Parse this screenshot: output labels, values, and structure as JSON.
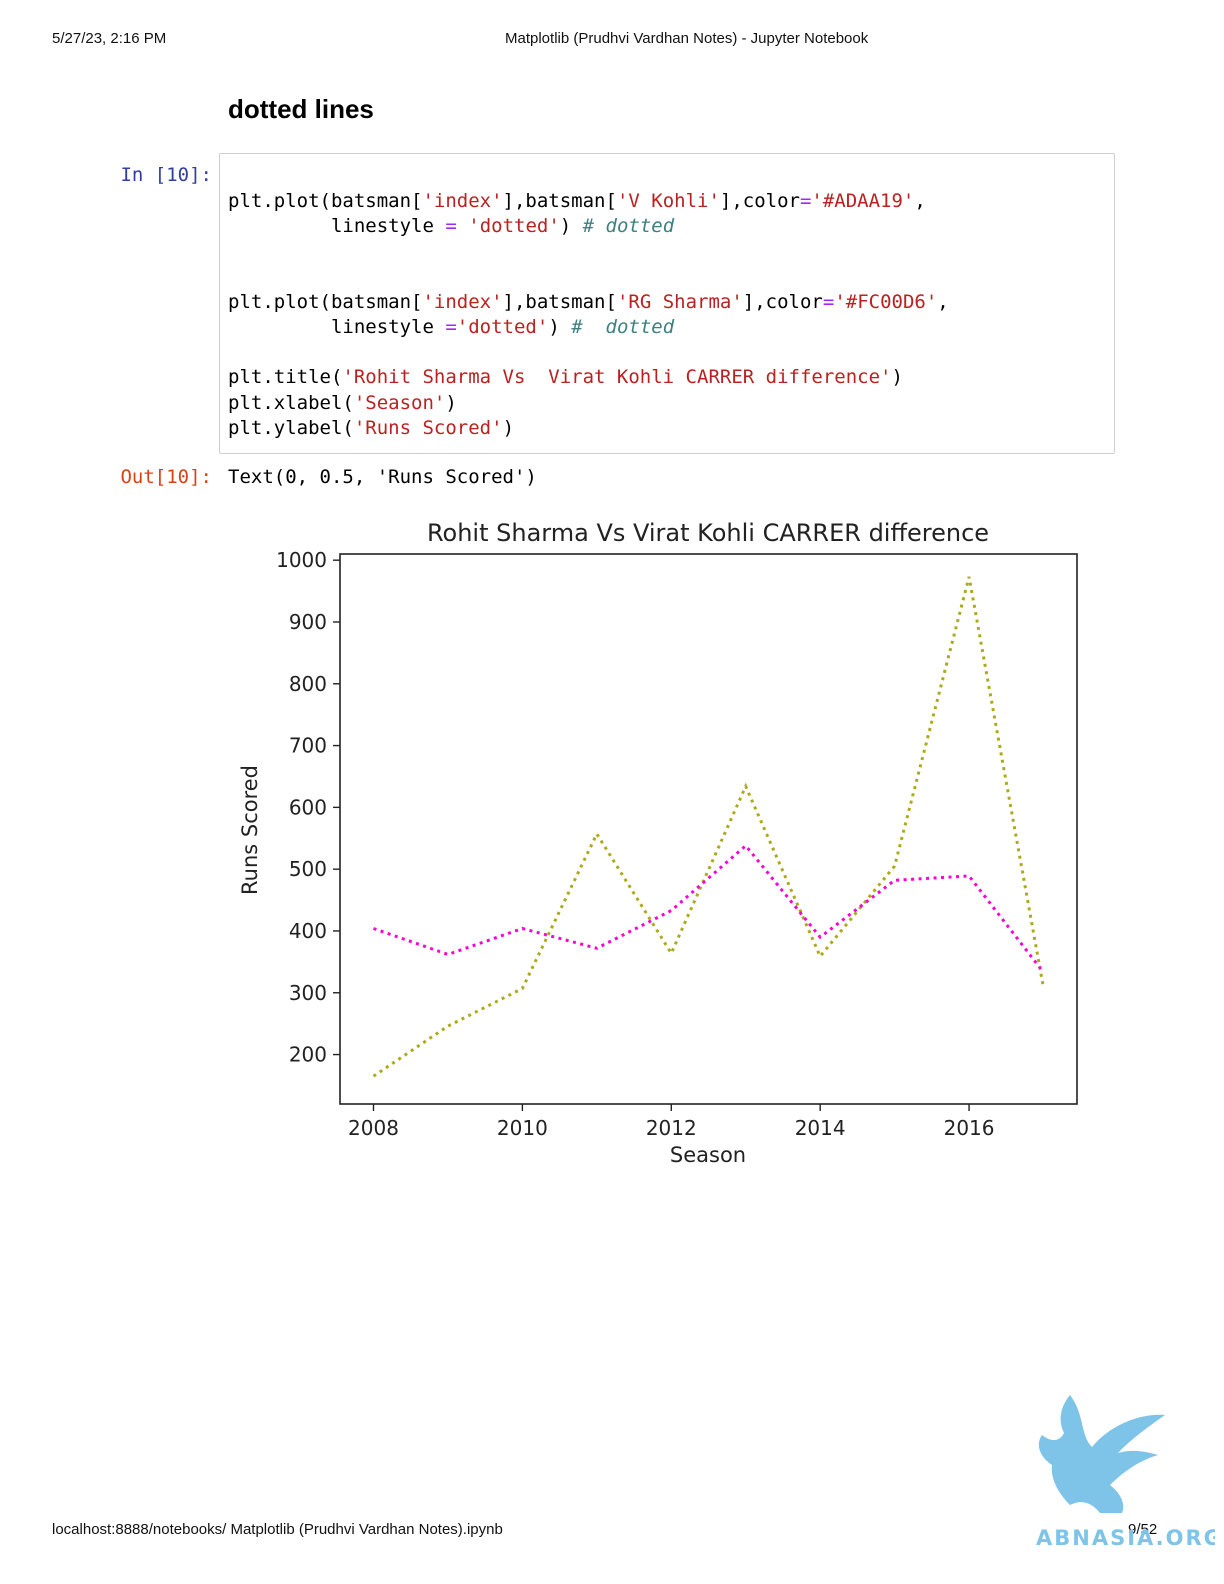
{
  "page": {
    "date": "5/27/23, 2:16 PM",
    "title": "Matplotlib (Prudhvi Vardhan Notes) - Jupyter Notebook",
    "url": "localhost:8888/notebooks/ Matplotlib (Prudhvi Vardhan Notes).ipynb",
    "page_number": "9/52"
  },
  "markdown": {
    "heading": "dotted lines"
  },
  "cell": {
    "in_prompt": "In [10]:",
    "out_prompt": "Out[10]:",
    "code_lines": [
      [
        {
          "t": "plt.plot(batsman["
        },
        {
          "t": "'index'",
          "k": "s"
        },
        {
          "t": "],batsman["
        },
        {
          "t": "'V Kohli'",
          "k": "s"
        },
        {
          "t": "],color"
        },
        {
          "t": "=",
          "k": "o"
        },
        {
          "t": "'#ADAA19'",
          "k": "s"
        },
        {
          "t": ","
        }
      ],
      [
        {
          "t": "         linestyle "
        },
        {
          "t": "=",
          "k": "o"
        },
        {
          "t": " "
        },
        {
          "t": "'dotted'",
          "k": "s"
        },
        {
          "t": ") "
        },
        {
          "t": "# dotted",
          "k": "c"
        }
      ],
      [],
      [],
      [
        {
          "t": "plt.plot(batsman["
        },
        {
          "t": "'index'",
          "k": "s"
        },
        {
          "t": "],batsman["
        },
        {
          "t": "'RG Sharma'",
          "k": "s"
        },
        {
          "t": "],color"
        },
        {
          "t": "=",
          "k": "o"
        },
        {
          "t": "'#FC00D6'",
          "k": "s"
        },
        {
          "t": ","
        }
      ],
      [
        {
          "t": "         linestyle "
        },
        {
          "t": "=",
          "k": "o"
        },
        {
          "t": "'dotted'",
          "k": "s"
        },
        {
          "t": ") "
        },
        {
          "t": "#  dotted",
          "k": "c"
        }
      ],
      [],
      [
        {
          "t": "plt.title("
        },
        {
          "t": "'Rohit Sharma Vs  Virat Kohli CARRER difference'",
          "k": "s"
        },
        {
          "t": ")"
        }
      ],
      [
        {
          "t": "plt.xlabel("
        },
        {
          "t": "'Season'",
          "k": "s"
        },
        {
          "t": ")"
        }
      ],
      [
        {
          "t": "plt.ylabel("
        },
        {
          "t": "'Runs Scored'",
          "k": "s"
        },
        {
          "t": ")"
        }
      ]
    ],
    "output_text": "Text(0, 0.5, 'Runs Scored')"
  },
  "colors": {
    "in_prompt": "#303f9f",
    "out_prompt": "#d84315",
    "string": "#ba2121",
    "operator": "#aa22ff",
    "comment": "#408080"
  },
  "chart_data": {
    "type": "line",
    "title": "Rohit Sharma Vs  Virat Kohli CARRER difference",
    "xlabel": "Season",
    "ylabel": "Runs Scored",
    "x": [
      2008,
      2009,
      2010,
      2011,
      2012,
      2013,
      2014,
      2015,
      2016,
      2017
    ],
    "xlim": [
      2007.55,
      2017.45
    ],
    "ylim": [
      120,
      1010
    ],
    "xticks": [
      2008,
      2010,
      2012,
      2014,
      2016
    ],
    "yticks": [
      200,
      300,
      400,
      500,
      600,
      700,
      800,
      900,
      1000
    ],
    "grid": false,
    "legend": false,
    "series": [
      {
        "color": "#ADAA19",
        "linestyle": "dotted",
        "values": [
          165,
          246,
          307,
          557,
          364,
          634,
          359,
          505,
          973,
          308
        ]
      },
      {
        "color": "#FC00D6",
        "linestyle": "dotted",
        "values": [
          404,
          362,
          404,
          372,
          433,
          538,
          390,
          482,
          489,
          333
        ]
      }
    ]
  },
  "watermark": {
    "text": "ABNASIA.ORG",
    "color": "#7ec3e8"
  }
}
